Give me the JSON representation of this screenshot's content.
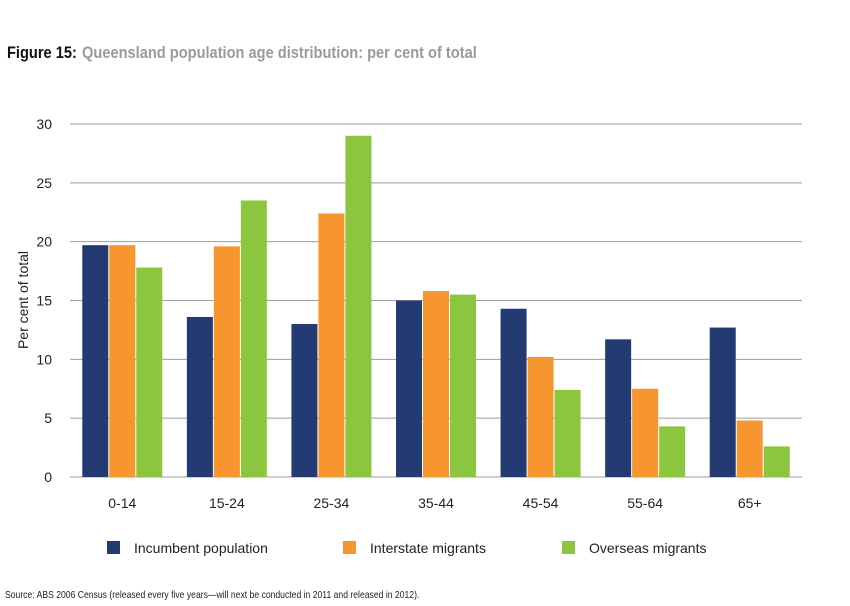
{
  "figure": {
    "label": "Figure 15:",
    "title": "Queensland population age distribution: per cent of total"
  },
  "source": "Source: ABS 2006 Census (released every five years—will next be conducted in 2011 and released in 2012).",
  "colors": {
    "Incumbent population": "#243a73",
    "Interstate migrants": "#f7962f",
    "Overseas migrants": "#8cc63f",
    "grid": "#9e9e9e"
  },
  "chart_data": {
    "type": "bar",
    "title": "Queensland population age distribution: per cent of total",
    "xlabel": "",
    "ylabel": "Per cent of total",
    "ylim": [
      0,
      30
    ],
    "yticks": [
      0,
      5,
      10,
      15,
      20,
      25,
      30
    ],
    "grid": true,
    "legend_position": "bottom",
    "categories": [
      "0-14",
      "15-24",
      "25-34",
      "35-44",
      "45-54",
      "55-64",
      "65+"
    ],
    "series": [
      {
        "name": "Incumbent population",
        "values": [
          19.7,
          13.6,
          13.0,
          15.0,
          14.3,
          11.7,
          12.7
        ]
      },
      {
        "name": "Interstate migrants",
        "values": [
          19.7,
          19.6,
          22.4,
          15.8,
          10.2,
          7.5,
          4.8
        ]
      },
      {
        "name": "Overseas migrants",
        "values": [
          17.8,
          23.5,
          29.0,
          15.5,
          7.4,
          4.3,
          2.6
        ]
      }
    ]
  }
}
